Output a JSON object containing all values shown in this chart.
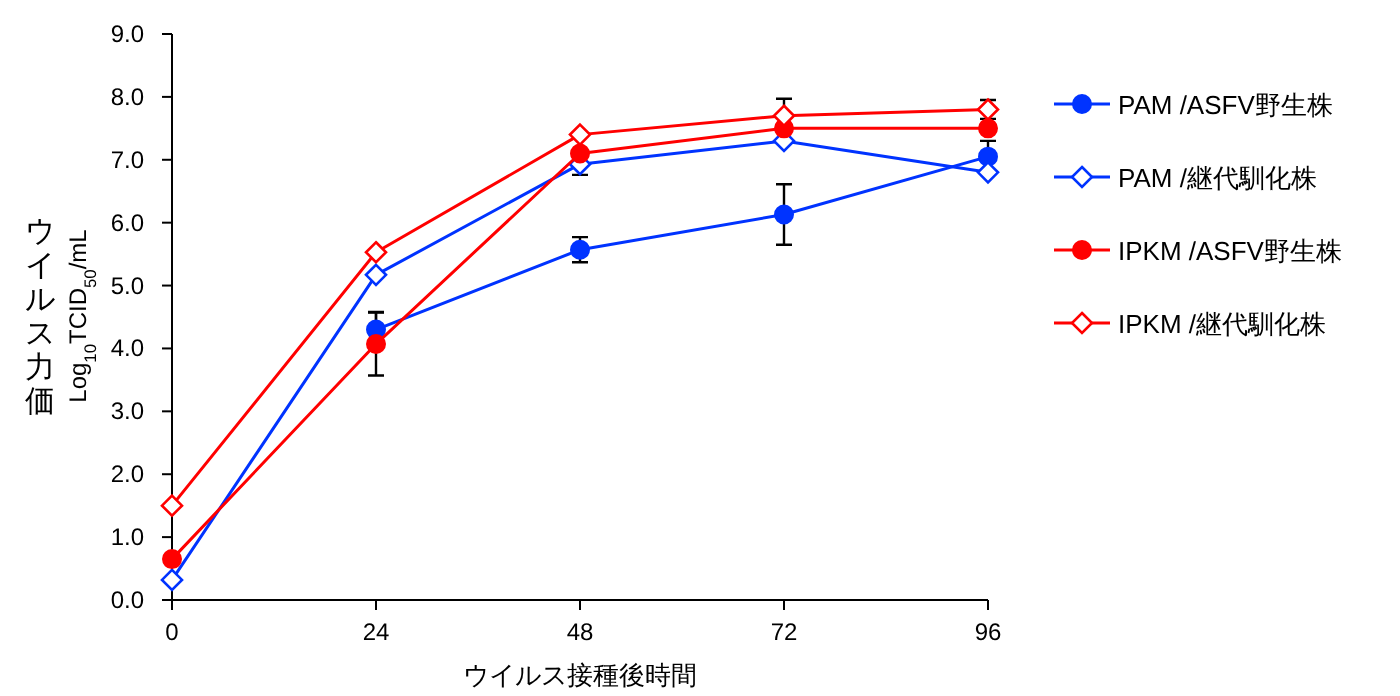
{
  "chart_data": {
    "type": "line",
    "xlabel": "ウイルス接種後時間",
    "ylabel": "ウイルス力価\nLog$_{10}$TCID$_{50}$/mL",
    "x": [
      0,
      24,
      48,
      72,
      96
    ],
    "xlim": [
      0,
      96
    ],
    "xticks": [
      0,
      24,
      48,
      72,
      96
    ],
    "ylim": [
      0,
      9
    ],
    "yticks": [
      {
        "value": 0,
        "label": "0.0"
      },
      {
        "value": 1,
        "label": "1.0"
      },
      {
        "value": 2,
        "label": "2.0"
      },
      {
        "value": 3,
        "label": "3.0"
      },
      {
        "value": 4,
        "label": "4.0"
      },
      {
        "value": 5,
        "label": "5.0"
      },
      {
        "value": 6,
        "label": "6.0"
      },
      {
        "value": 7,
        "label": "7.0"
      },
      {
        "value": 8,
        "label": "8.0"
      },
      {
        "value": 9,
        "label": "9.0"
      }
    ],
    "grid": false,
    "legend": "right",
    "line_style": "solid",
    "series": [
      {
        "name": "PAM /ASFV野生株",
        "color": "#0033ff",
        "marker": "circle",
        "values": [
          null,
          4.3,
          5.57,
          6.13,
          7.05
        ],
        "errors": [
          null,
          0.28,
          0.2,
          0.48,
          0.25
        ]
      },
      {
        "name": "PAM /継代馴化株",
        "color": "#0033ff",
        "marker": "diamond",
        "values": [
          0.32,
          5.17,
          6.93,
          7.3,
          6.8
        ],
        "errors": [
          null,
          null,
          0.17,
          null,
          null
        ]
      },
      {
        "name": "IPKM /ASFV野生株",
        "color": "#ff0000",
        "marker": "circle",
        "values": [
          0.65,
          4.07,
          7.1,
          7.5,
          7.5
        ],
        "errors": [
          null,
          0.5,
          null,
          null,
          null
        ]
      },
      {
        "name": "IPKM /継代馴化株",
        "color": "#ff0000",
        "marker": "diamond",
        "values": [
          1.5,
          5.53,
          7.4,
          7.7,
          7.8
        ],
        "errors": [
          null,
          null,
          null,
          0.27,
          0.15
        ]
      }
    ]
  }
}
